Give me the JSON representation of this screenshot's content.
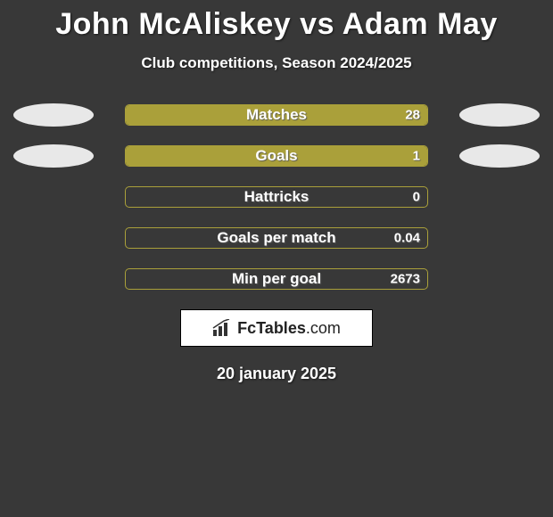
{
  "background_color": "#383838",
  "title": {
    "player1": "John McAliskey",
    "vs": "vs",
    "player2": "Adam May",
    "color": "#ffffff",
    "fontsize": 34
  },
  "subtitle": {
    "text": "Club competitions, Season 2024/2025",
    "fontsize": 17
  },
  "bar_style": {
    "track_border_color": "#aaa03a",
    "fill_color": "#aaa03a",
    "track_height": 24,
    "border_radius": 5,
    "label_fontsize": 17,
    "value_fontsize": 15
  },
  "ellipse_style": {
    "width": 90,
    "height": 26,
    "color": "#e8e8e8"
  },
  "rows": [
    {
      "label": "Matches",
      "value_right": "28",
      "left_pct": 0,
      "right_pct": 100,
      "show_left_ellipse": true,
      "show_right_ellipse": true
    },
    {
      "label": "Goals",
      "value_right": "1",
      "left_pct": 0,
      "right_pct": 100,
      "show_left_ellipse": true,
      "show_right_ellipse": true
    },
    {
      "label": "Hattricks",
      "value_right": "0",
      "left_pct": 0,
      "right_pct": 0,
      "show_left_ellipse": false,
      "show_right_ellipse": false
    },
    {
      "label": "Goals per match",
      "value_right": "0.04",
      "left_pct": 0,
      "right_pct": 0,
      "show_left_ellipse": false,
      "show_right_ellipse": false
    },
    {
      "label": "Min per goal",
      "value_right": "2673",
      "left_pct": 0,
      "right_pct": 0,
      "show_left_ellipse": false,
      "show_right_ellipse": false
    }
  ],
  "logo": {
    "brand_bold": "FcTables",
    "brand_light": ".com"
  },
  "date": "20 january 2025"
}
